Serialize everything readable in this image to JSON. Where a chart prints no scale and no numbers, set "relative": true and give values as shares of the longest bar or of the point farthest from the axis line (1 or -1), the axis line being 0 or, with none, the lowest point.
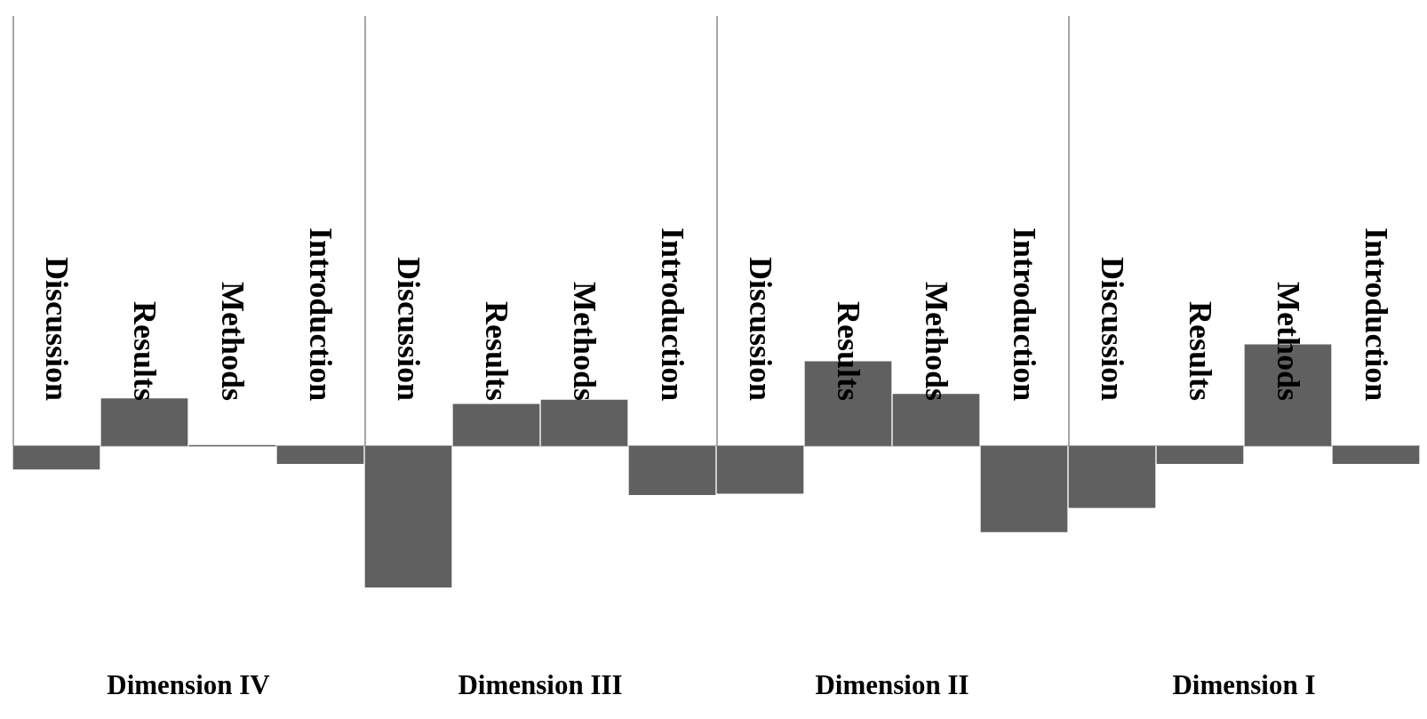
{
  "chart_data": {
    "type": "bar",
    "relative": true,
    "color": "#606060",
    "categories": [
      "Discussion",
      "Results",
      "Methods",
      "Introduction",
      "Discussion",
      "Results",
      "Methods",
      "Introduction",
      "Discussion",
      "Results",
      "Methods",
      "Introduction",
      "Discussion",
      "Results",
      "Methods",
      "Introduction"
    ],
    "values": [
      -0.17,
      0.34,
      0.01,
      -0.13,
      -1,
      0.3,
      0.33,
      -0.35,
      -0.34,
      0.6,
      0.37,
      -0.61,
      -0.44,
      -0.13,
      0.72,
      -0.13
    ],
    "annotations": [
      "Dimension IV",
      "Dimension III",
      "Dimension II",
      "Dimension I"
    ]
  }
}
